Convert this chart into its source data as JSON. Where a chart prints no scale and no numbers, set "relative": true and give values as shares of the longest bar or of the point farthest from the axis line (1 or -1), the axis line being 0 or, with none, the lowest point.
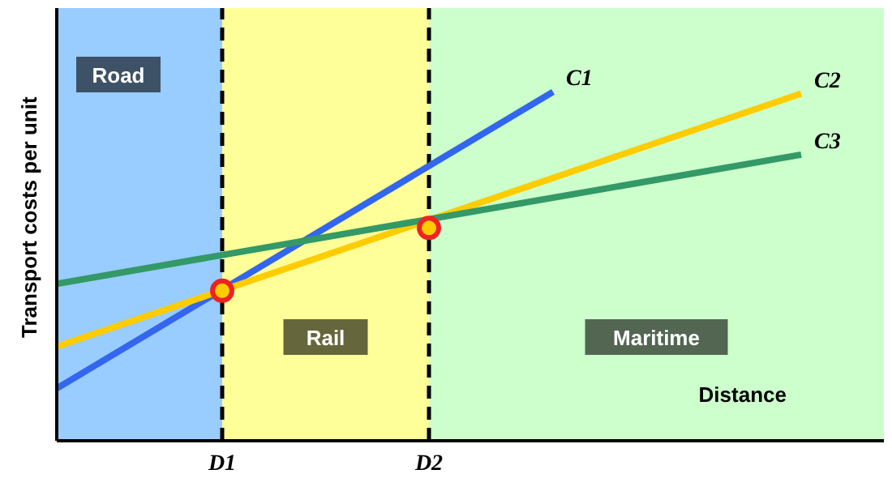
{
  "chart_data": {
    "type": "line",
    "relative": true,
    "xlabel": "Distance",
    "ylabel": "Transport costs per unit",
    "categories": [
      null,
      null,
      null,
      null,
      "D1",
      null,
      null,
      null,
      null,
      "D2",
      null,
      null,
      null,
      null,
      null,
      null,
      null,
      null,
      null,
      null,
      null
    ],
    "series": [
      {
        "name": "C1",
        "color": "#3366ee",
        "values": [
          0.15,
          null,
          null,
          null,
          null,
          null,
          null,
          null,
          null,
          null,
          null,
          null,
          1,
          null,
          null,
          null,
          null,
          null,
          null,
          null,
          null
        ]
      },
      {
        "name": "C2",
        "color": "#ffcc00",
        "values": [
          0.27,
          null,
          null,
          null,
          null,
          null,
          null,
          null,
          null,
          null,
          null,
          null,
          null,
          null,
          null,
          null,
          null,
          null,
          0.995,
          null,
          null
        ]
      },
      {
        "name": "C3",
        "color": "#339966",
        "values": [
          0.45,
          null,
          null,
          null,
          null,
          null,
          null,
          null,
          null,
          null,
          null,
          null,
          null,
          null,
          null,
          null,
          null,
          null,
          0.82,
          null,
          null
        ]
      },
      {
        "type": "scatter",
        "color": "#ee2222",
        "marker": "circle",
        "x": [
          "D1",
          "D2"
        ],
        "values": [
          0.43,
          0.61
        ]
      }
    ],
    "annotations": [
      "Road",
      "Rail",
      "Maritime"
    ],
    "ref_lines": [
      {
        "axis": "x",
        "value": "D1",
        "line_style": "dashed"
      },
      {
        "axis": "x",
        "value": "D2",
        "line_style": "dashed"
      }
    ],
    "legend": false,
    "grid": false
  }
}
